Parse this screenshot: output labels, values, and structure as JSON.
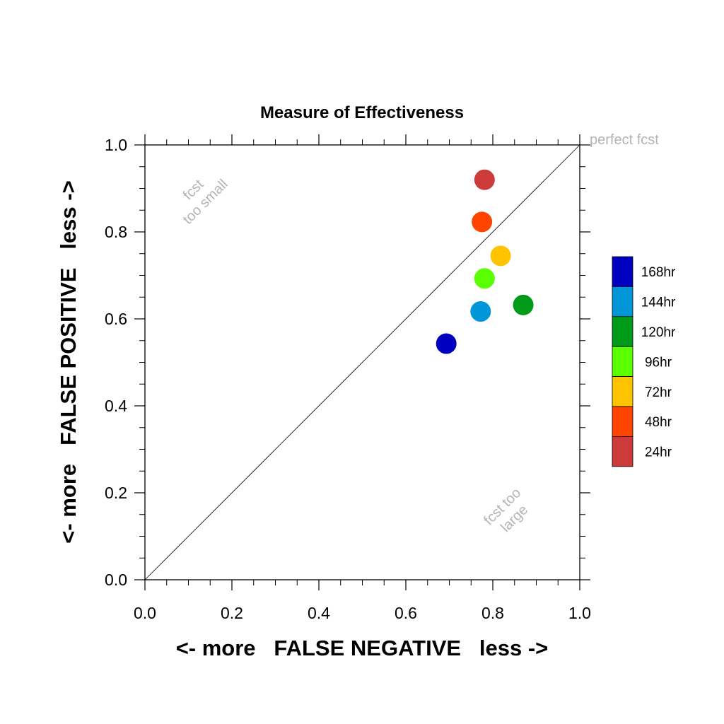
{
  "chart_data": {
    "type": "scatter",
    "title": "Measure of Effectiveness",
    "xlabel": "<- more   FALSE NEGATIVE   less ->",
    "ylabel": "<- more   FALSE POSITIVE   less ->",
    "xlim": [
      0.0,
      1.0
    ],
    "ylim": [
      0.0,
      1.0
    ],
    "xticks": [
      "0.0",
      "0.2",
      "0.4",
      "0.6",
      "0.8",
      "1.0"
    ],
    "yticks": [
      "0.0",
      "0.2",
      "0.4",
      "0.6",
      "0.8",
      "1.0"
    ],
    "grid": false,
    "reference_line": "diagonal",
    "annotations": {
      "perfect": "perfect fcst",
      "small_1": "fcst",
      "small_2": "too small",
      "large_1": "fcst too",
      "large_2": "large"
    },
    "legend_position": "right",
    "series": [
      {
        "name": "168hr",
        "color": "#0000c0",
        "x": 0.693,
        "y": 0.543
      },
      {
        "name": "144hr",
        "color": "#0096d8",
        "x": 0.772,
        "y": 0.617
      },
      {
        "name": "120hr",
        "color": "#009b19",
        "x": 0.87,
        "y": 0.632
      },
      {
        "name": "96hr",
        "color": "#5aff00",
        "x": 0.781,
        "y": 0.693
      },
      {
        "name": "72hr",
        "color": "#ffc400",
        "x": 0.818,
        "y": 0.745
      },
      {
        "name": "48hr",
        "color": "#ff4400",
        "x": 0.775,
        "y": 0.823
      },
      {
        "name": "24hr",
        "color": "#cc3a3a",
        "x": 0.781,
        "y": 0.92
      }
    ]
  }
}
